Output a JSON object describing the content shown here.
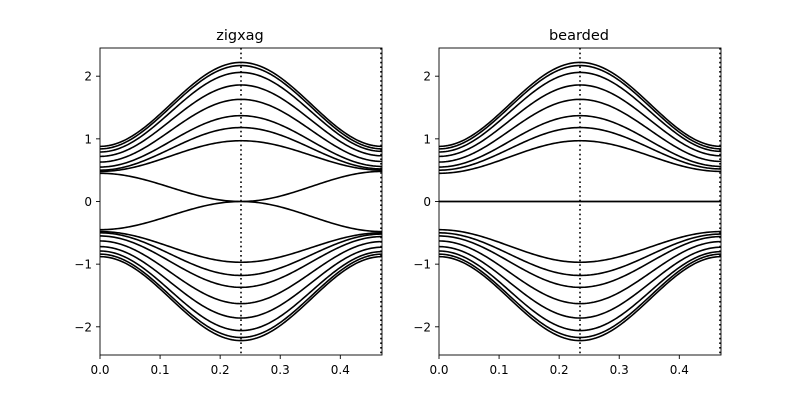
{
  "chart_data": [
    {
      "type": "line",
      "title": "zigxag",
      "xlabel": "",
      "ylabel": "",
      "xlim": [
        0,
        0.4694
      ],
      "ylim": [
        -2.45,
        2.45
      ],
      "xticks": [
        0.0,
        0.1,
        0.2,
        0.3,
        0.4
      ],
      "xtick_labels": [
        "0.0",
        "0.1",
        "0.2",
        "0.3",
        "0.4"
      ],
      "yticks": [
        -2,
        -1,
        0,
        1,
        2
      ],
      "ytick_labels": [
        "−2",
        "−1",
        "0",
        "1",
        "2"
      ],
      "grid": false,
      "series_color": "#000000",
      "vertical_lines": [
        {
          "x": 0.2347,
          "style": "dotted"
        },
        {
          "x": 0.4694,
          "style": "dotted"
        }
      ],
      "bands": [
        {
          "x0": 0.88,
          "xmid": 2.22,
          "xend": 0.88
        },
        {
          "x0": 0.84,
          "xmid": 2.17,
          "xend": 0.84
        },
        {
          "x0": 0.79,
          "xmid": 2.06,
          "xend": 0.8
        },
        {
          "x0": 0.72,
          "xmid": 1.86,
          "xend": 0.73
        },
        {
          "x0": 0.63,
          "xmid": 1.63,
          "xend": 0.64
        },
        {
          "x0": 0.55,
          "xmid": 1.37,
          "xend": 0.56
        },
        {
          "x0": 0.5,
          "xmid": 1.18,
          "xend": 0.52
        },
        {
          "x0": 0.48,
          "xmid": 0.97,
          "xend": 0.5
        },
        {
          "x0": 0.45,
          "xmid": 0.0,
          "xend": 0.48
        },
        {
          "x0": -0.45,
          "xmid": 0.0,
          "xend": -0.48
        },
        {
          "x0": -0.48,
          "xmid": -0.97,
          "xend": -0.5
        },
        {
          "x0": -0.5,
          "xmid": -1.18,
          "xend": -0.52
        },
        {
          "x0": -0.55,
          "xmid": -1.37,
          "xend": -0.56
        },
        {
          "x0": -0.63,
          "xmid": -1.63,
          "xend": -0.64
        },
        {
          "x0": -0.72,
          "xmid": -1.86,
          "xend": -0.73
        },
        {
          "x0": -0.79,
          "xmid": -2.06,
          "xend": -0.8
        },
        {
          "x0": -0.84,
          "xmid": -2.17,
          "xend": -0.84
        },
        {
          "x0": -0.88,
          "xmid": -2.22,
          "xend": -0.88
        }
      ]
    },
    {
      "type": "line",
      "title": "bearded",
      "xlabel": "",
      "ylabel": "",
      "xlim": [
        0,
        0.4694
      ],
      "ylim": [
        -2.45,
        2.45
      ],
      "xticks": [
        0.0,
        0.1,
        0.2,
        0.3,
        0.4
      ],
      "xtick_labels": [
        "0.0",
        "0.1",
        "0.2",
        "0.3",
        "0.4"
      ],
      "yticks": [
        -2,
        -1,
        0,
        1,
        2
      ],
      "ytick_labels": [
        "−2",
        "−1",
        "0",
        "1",
        "2"
      ],
      "grid": false,
      "series_color": "#000000",
      "vertical_lines": [
        {
          "x": 0.2347,
          "style": "dotted"
        },
        {
          "x": 0.4694,
          "style": "dotted"
        }
      ],
      "bands": [
        {
          "x0": 0.88,
          "xmid": 2.22,
          "xend": 0.88
        },
        {
          "x0": 0.84,
          "xmid": 2.17,
          "xend": 0.84
        },
        {
          "x0": 0.79,
          "xmid": 2.06,
          "xend": 0.8
        },
        {
          "x0": 0.72,
          "xmid": 1.86,
          "xend": 0.73
        },
        {
          "x0": 0.63,
          "xmid": 1.63,
          "xend": 0.64
        },
        {
          "x0": 0.55,
          "xmid": 1.37,
          "xend": 0.56
        },
        {
          "x0": 0.5,
          "xmid": 1.18,
          "xend": 0.52
        },
        {
          "x0": 0.45,
          "xmid": 0.97,
          "xend": 0.48
        },
        {
          "x0": 0.0,
          "xmid": 0.0,
          "xend": 0.0
        },
        {
          "x0": -0.0,
          "xmid": 0.0,
          "xend": -0.0
        },
        {
          "x0": -0.45,
          "xmid": -0.97,
          "xend": -0.48
        },
        {
          "x0": -0.5,
          "xmid": -1.18,
          "xend": -0.52
        },
        {
          "x0": -0.55,
          "xmid": -1.37,
          "xend": -0.56
        },
        {
          "x0": -0.63,
          "xmid": -1.63,
          "xend": -0.64
        },
        {
          "x0": -0.72,
          "xmid": -1.86,
          "xend": -0.73
        },
        {
          "x0": -0.79,
          "xmid": -2.06,
          "xend": -0.8
        },
        {
          "x0": -0.84,
          "xmid": -2.17,
          "xend": -0.84
        },
        {
          "x0": -0.88,
          "xmid": -2.22,
          "xend": -0.88
        }
      ]
    }
  ]
}
